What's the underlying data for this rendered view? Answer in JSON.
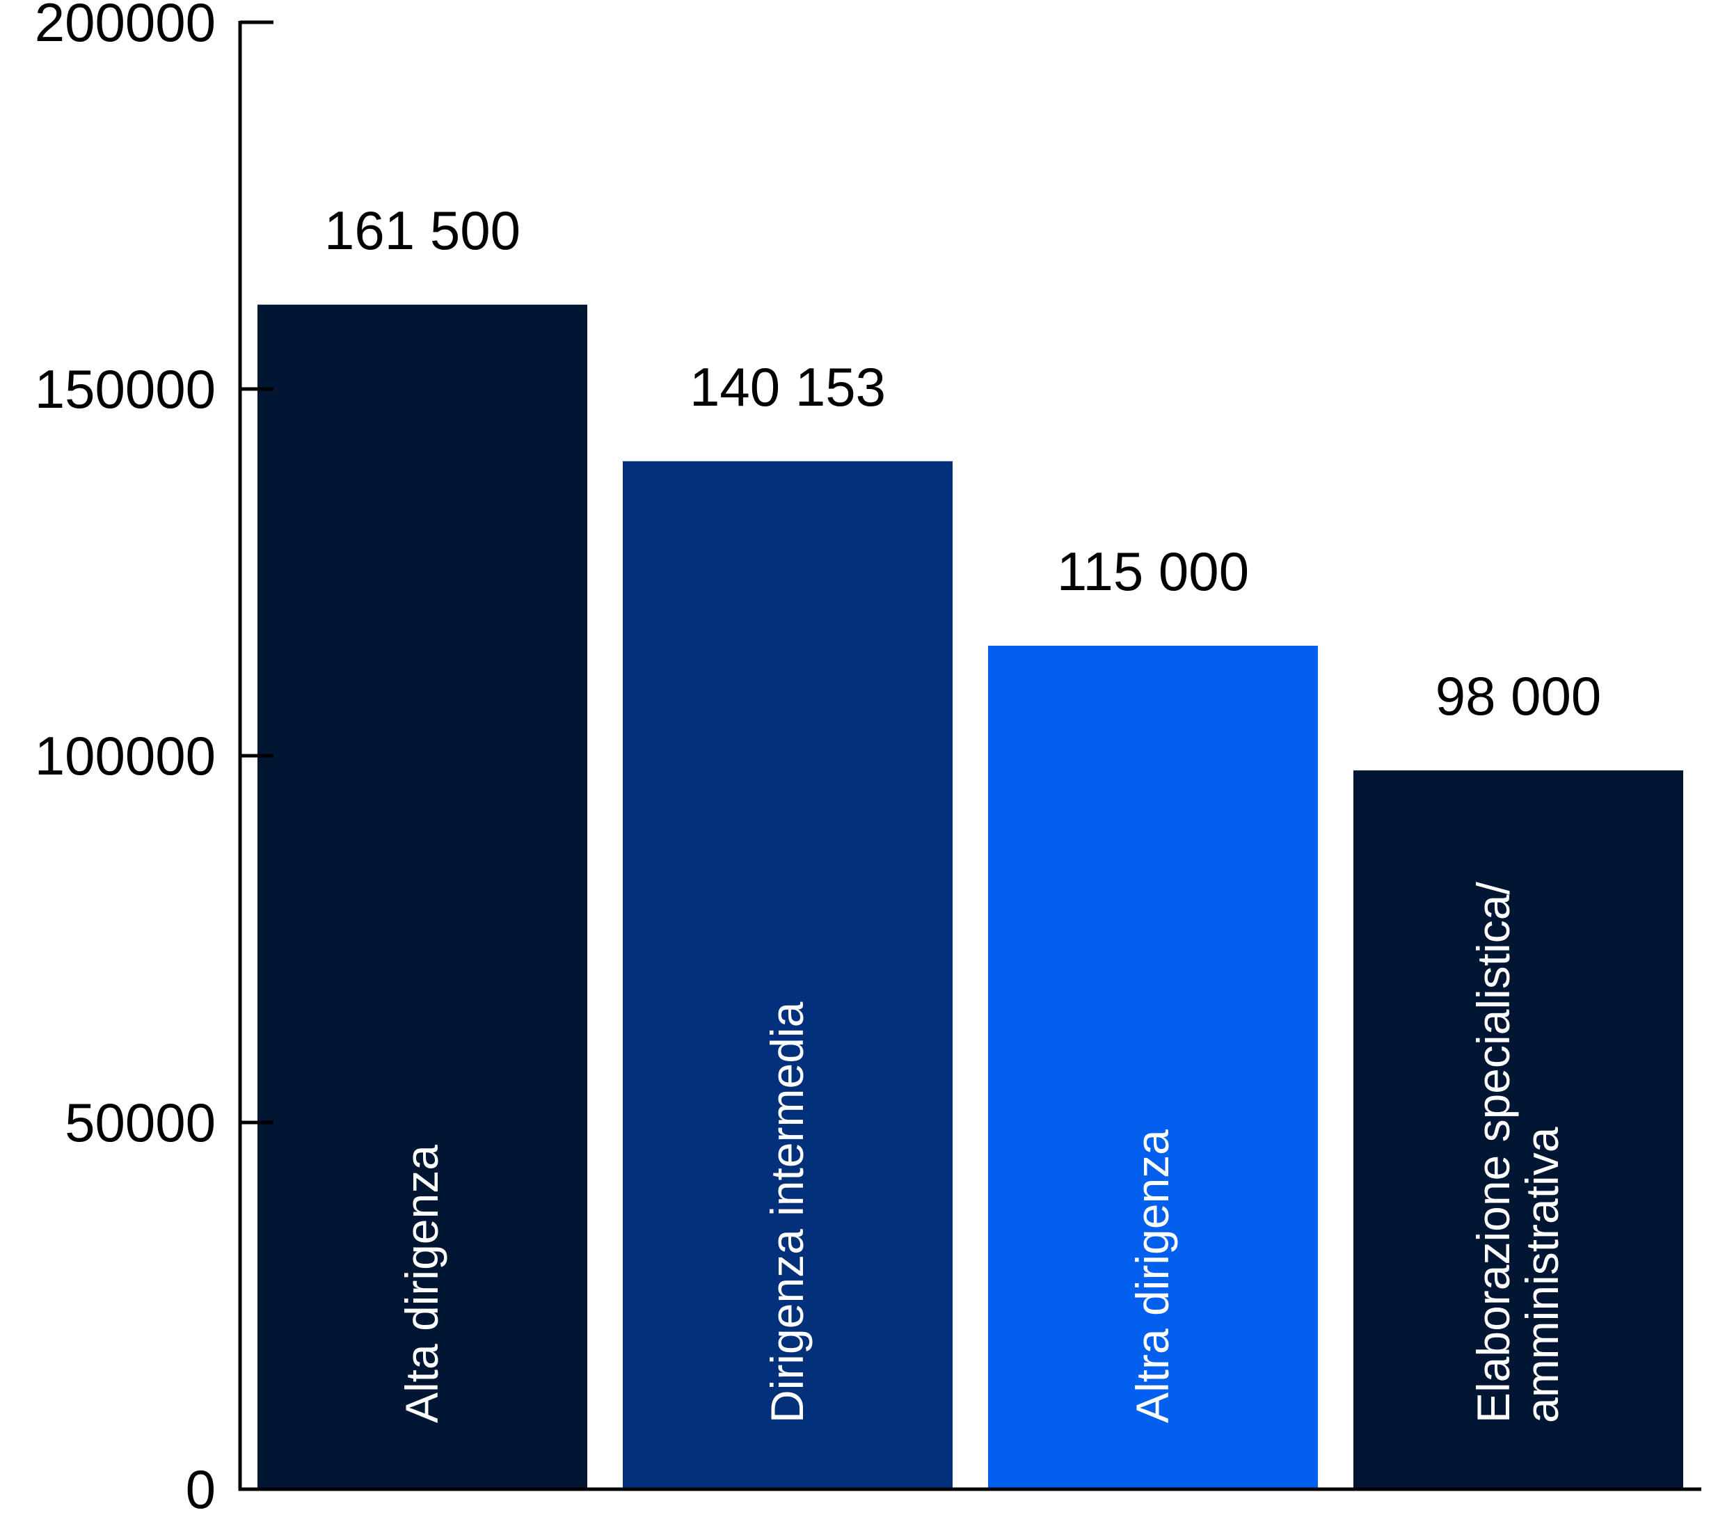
{
  "chart_data": {
    "type": "bar",
    "categories": [
      "Alta dirigenza",
      "Dirigenza intermedia",
      "Altra dirigenza",
      "Elaborazione specialistica/ amministrativa"
    ],
    "category_lines": [
      [
        "Alta dirigenza"
      ],
      [
        "Dirigenza intermedia"
      ],
      [
        "Altra dirigenza"
      ],
      [
        "Elaborazione specialistica/",
        "amministrativa"
      ]
    ],
    "values": [
      161500,
      140153,
      115000,
      98000
    ],
    "value_labels": [
      "161 500",
      "140 153",
      "115 000",
      "98 000"
    ],
    "colors": [
      "#011633",
      "#02307a",
      "#0360ee",
      "#011633"
    ],
    "y_ticks": [
      0,
      50000,
      100000,
      150000,
      200000
    ],
    "y_tick_labels": [
      "0",
      "50000",
      "100000",
      "150000",
      "200000"
    ],
    "ylim": [
      0,
      200000
    ],
    "title": "",
    "xlabel": "",
    "ylabel": "",
    "grid": false,
    "legend": "none"
  }
}
